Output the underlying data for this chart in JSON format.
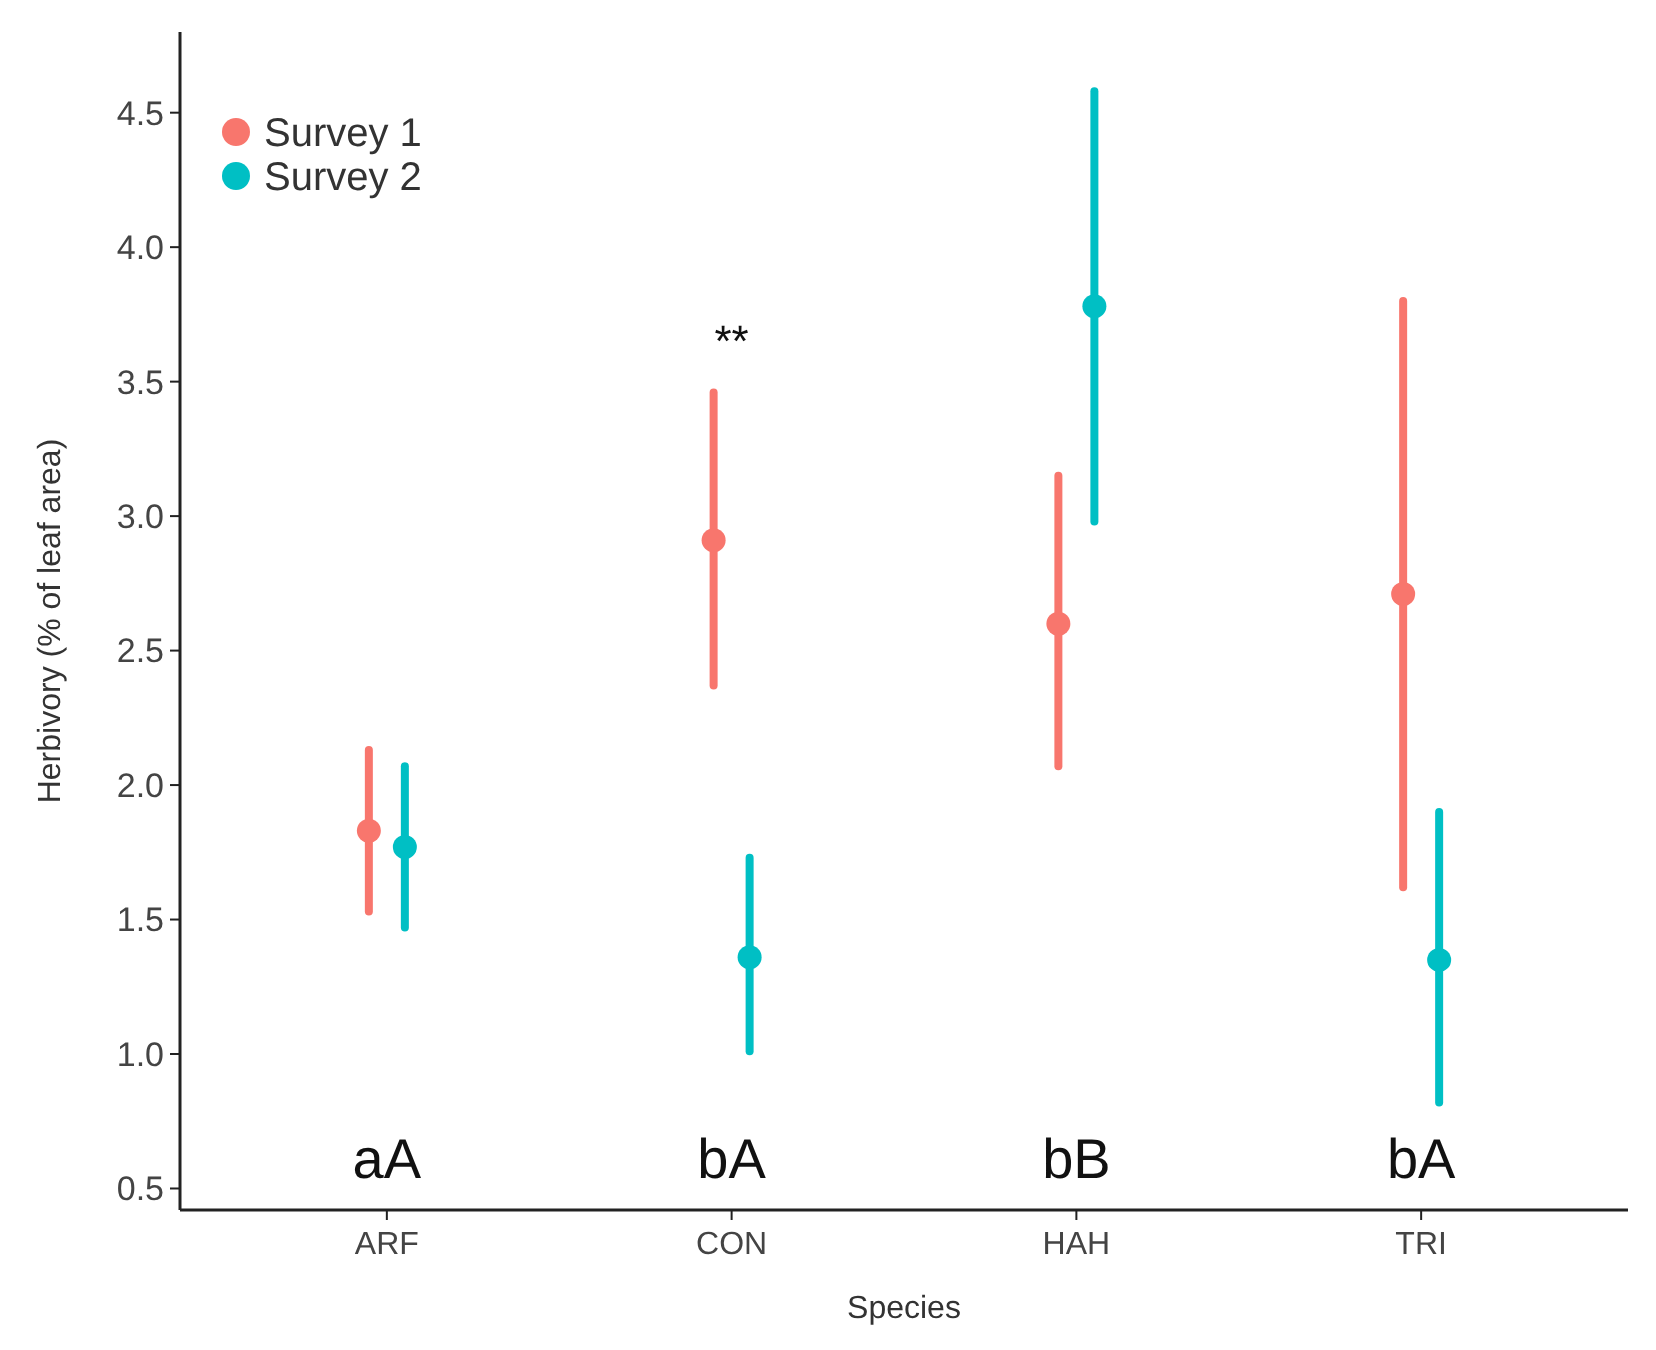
{
  "chart_data": {
    "type": "scatter",
    "xlabel": "Species",
    "ylabel": "Herbivory (% of leaf area)",
    "categories": [
      "ARF",
      "CON",
      "HAH",
      "TRI"
    ],
    "series": [
      {
        "name": "Survey 1",
        "color": "#f8766d",
        "values": [
          1.83,
          2.91,
          2.6,
          2.71
        ],
        "errors": [
          [
            1.53,
            2.13
          ],
          [
            2.37,
            3.46
          ],
          [
            2.07,
            3.15
          ],
          [
            1.62,
            3.8
          ]
        ]
      },
      {
        "name": "Survey 2",
        "color": "#00bfc4",
        "values": [
          1.77,
          1.36,
          3.78,
          1.35
        ],
        "errors": [
          [
            1.47,
            2.07
          ],
          [
            1.01,
            1.73
          ],
          [
            2.98,
            4.58
          ],
          [
            0.82,
            1.9
          ]
        ]
      }
    ],
    "ylim": [
      0.42,
      4.8
    ],
    "yticks": [
      {
        "value": 0.5,
        "label": "0.5"
      },
      {
        "value": 1,
        "label": "1.0"
      },
      {
        "value": 1.5,
        "label": "1.5"
      },
      {
        "value": 2,
        "label": "2.0"
      },
      {
        "value": 2.5,
        "label": "2.5"
      },
      {
        "value": 3,
        "label": "3.0"
      },
      {
        "value": 3.5,
        "label": "3.5"
      },
      {
        "value": 4,
        "label": "4.0"
      },
      {
        "value": 4.5,
        "label": "4.5"
      }
    ],
    "grid": false,
    "legend": "top left",
    "marker": "circle",
    "annotations": [
      "aA",
      "bA",
      "bB",
      "bA",
      "**"
    ]
  }
}
